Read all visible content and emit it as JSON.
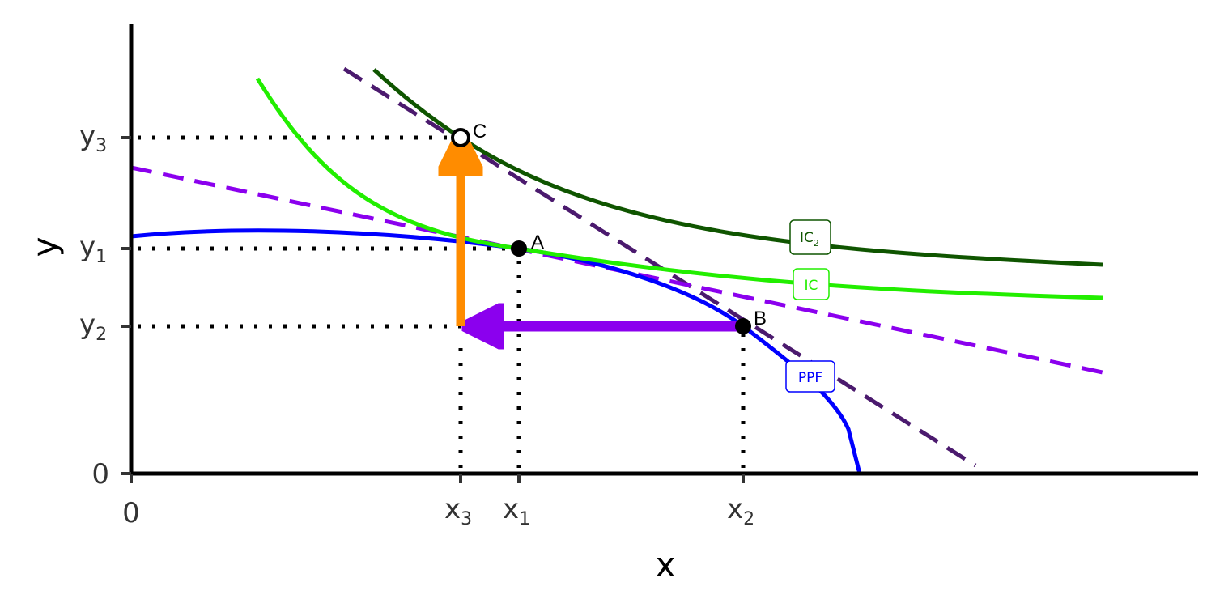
{
  "axes": {
    "x_title": "x",
    "y_title": "y",
    "x_ticks": [
      {
        "main": "0"
      },
      {
        "main": "x",
        "sub": "3"
      },
      {
        "main": "x",
        "sub": "1"
      },
      {
        "main": "x",
        "sub": "2"
      }
    ],
    "y_ticks": [
      {
        "main": "0"
      },
      {
        "main": "y",
        "sub": "2"
      },
      {
        "main": "y",
        "sub": "1"
      },
      {
        "main": "y",
        "sub": "3"
      }
    ]
  },
  "points": [
    "A",
    "B",
    "C"
  ],
  "curve_labels": [
    {
      "main": "IC",
      "sub": "2"
    },
    {
      "main": "IC"
    },
    {
      "main": "PPF"
    }
  ]
}
